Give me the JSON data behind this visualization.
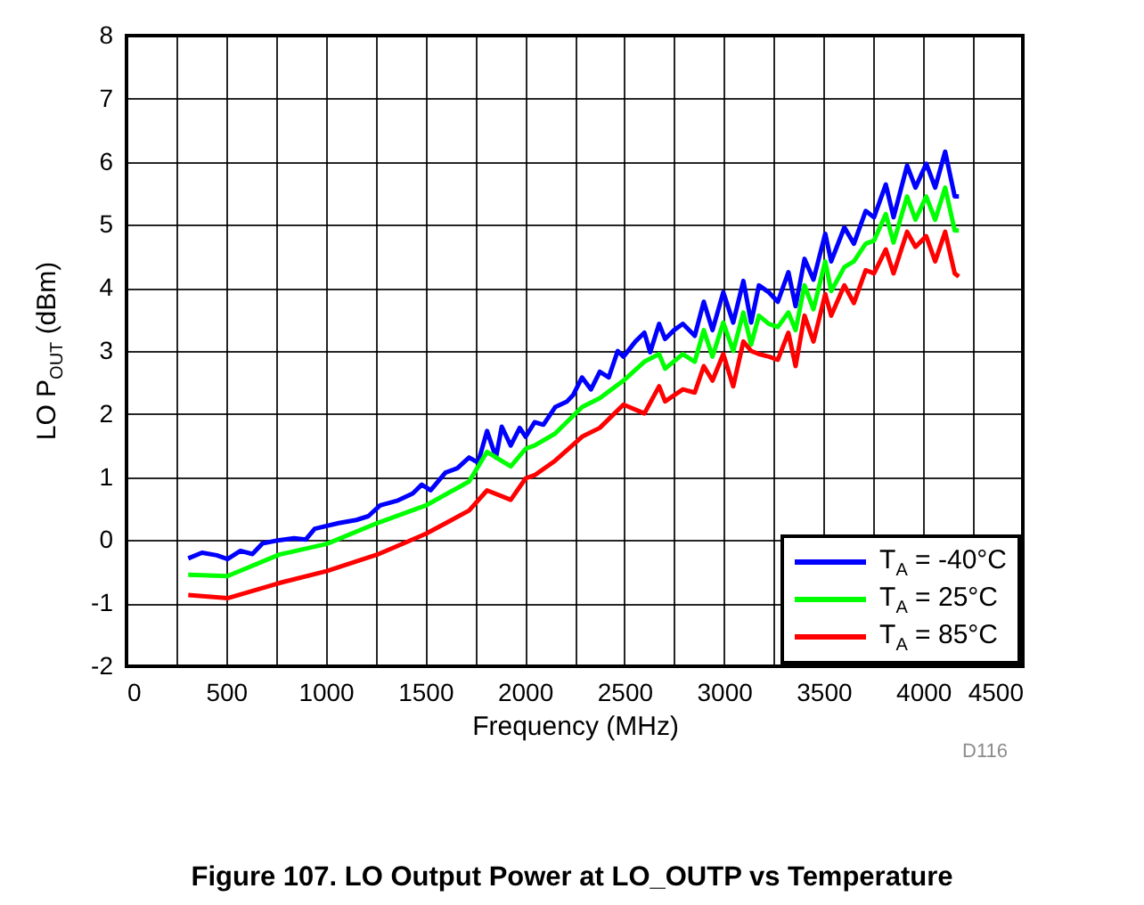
{
  "chart_data": {
    "type": "line",
    "title": "Figure 107. LO Output Power at LO_OUTP vs Temperature",
    "xlabel": "Frequency (MHz)",
    "ylabel": "LO P$_{OUT}$  (dBm)",
    "annotations": [
      "D116"
    ],
    "xlim": [
      0,
      4500
    ],
    "xticks": [
      0,
      {
        "value": 250,
        "label": null
      },
      500,
      {
        "value": 750,
        "label": null
      },
      1000,
      {
        "value": 1250,
        "label": null
      },
      1500,
      {
        "value": 1750,
        "label": null
      },
      2000,
      {
        "value": 2250,
        "label": null
      },
      2500,
      {
        "value": 2750,
        "label": null
      },
      3000,
      {
        "value": 3250,
        "label": null
      },
      3500,
      {
        "value": 3750,
        "label": null
      },
      4000,
      {
        "value": 4250,
        "label": null
      },
      4500
    ],
    "ylim": [
      -2,
      8
    ],
    "yticks": [
      -2,
      -1,
      0,
      1,
      2,
      3,
      4,
      5,
      6,
      7,
      8
    ],
    "grid": true,
    "legend": "bottom right",
    "series": [
      {
        "name": "T$_{A}$ = -40°C",
        "color": "#0000ff",
        "x": [
          310,
          379,
          453,
          507,
          572,
          632,
          683,
          767,
          841,
          900,
          945,
          1065,
          1154,
          1214,
          1273,
          1363,
          1437,
          1482,
          1527,
          1601,
          1661,
          1720,
          1765,
          1810,
          1855,
          1884,
          1929,
          1974,
          2004,
          2049,
          2093,
          2152,
          2212,
          2242,
          2287,
          2332,
          2376,
          2421,
          2466,
          2495,
          2555,
          2600,
          2629,
          2674,
          2704,
          2749,
          2793,
          2853,
          2898,
          2942,
          2996,
          3046,
          3097,
          3136,
          3175,
          3225,
          3270,
          3323,
          3359,
          3404,
          3449,
          3508,
          3538,
          3604,
          3652,
          3711,
          3753,
          3812,
          3851,
          3919,
          3961,
          4015,
          4060,
          4110,
          4158,
          4179
        ],
        "values": [
          -0.29,
          -0.2,
          -0.24,
          -0.3,
          -0.17,
          -0.22,
          -0.05,
          0,
          0.03,
          0.01,
          0.18,
          0.27,
          0.32,
          0.38,
          0.55,
          0.63,
          0.74,
          0.88,
          0.79,
          1.07,
          1.14,
          1.31,
          1.23,
          1.73,
          1.31,
          1.8,
          1.5,
          1.78,
          1.64,
          1.87,
          1.83,
          2.11,
          2.2,
          2.3,
          2.58,
          2.39,
          2.67,
          2.58,
          3.0,
          2.91,
          3.15,
          3.29,
          2.98,
          3.43,
          3.19,
          3.33,
          3.43,
          3.24,
          3.78,
          3.33,
          3.93,
          3.45,
          4.11,
          3.45,
          4.04,
          3.93,
          3.78,
          4.25,
          3.71,
          4.46,
          4.13,
          4.86,
          4.42,
          4.96,
          4.7,
          5.22,
          5.12,
          5.64,
          5.12,
          5.94,
          5.59,
          5.97,
          5.59,
          6.16,
          5.45,
          5.45
        ]
      },
      {
        "name": "T$_{A}$ = 25°C",
        "color": "#00ff00",
        "x": [
          310,
          507,
          767,
          1005,
          1258,
          1503,
          1720,
          1810,
          1929,
          2004,
          2049,
          2152,
          2287,
          2376,
          2495,
          2600,
          2674,
          2704,
          2793,
          2853,
          2898,
          2942,
          2996,
          3046,
          3097,
          3136,
          3175,
          3225,
          3270,
          3323,
          3359,
          3404,
          3449,
          3508,
          3538,
          3604,
          3652,
          3711,
          3753,
          3812,
          3851,
          3919,
          3961,
          4015,
          4060,
          4110,
          4158,
          4179
        ],
        "values": [
          -0.55,
          -0.57,
          -0.23,
          -0.06,
          0.27,
          0.55,
          0.93,
          1.4,
          1.17,
          1.45,
          1.5,
          1.69,
          2.11,
          2.25,
          2.53,
          2.83,
          2.95,
          2.72,
          2.95,
          2.83,
          3.33,
          2.91,
          3.45,
          3.0,
          3.61,
          3.1,
          3.56,
          3.43,
          3.38,
          3.61,
          3.33,
          4.04,
          3.66,
          4.42,
          3.95,
          4.33,
          4.42,
          4.7,
          4.75,
          5.17,
          4.72,
          5.45,
          5.08,
          5.45,
          5.08,
          5.59,
          4.91,
          4.91
        ]
      },
      {
        "name": "T$_{A}$ = 85°C",
        "color": "#ff0000",
        "x": [
          310,
          507,
          767,
          1005,
          1258,
          1503,
          1720,
          1810,
          1929,
          2004,
          2049,
          2152,
          2287,
          2376,
          2495,
          2600,
          2674,
          2704,
          2793,
          2853,
          2898,
          2942,
          2996,
          3046,
          3097,
          3136,
          3175,
          3225,
          3270,
          3323,
          3359,
          3404,
          3449,
          3508,
          3538,
          3604,
          3652,
          3711,
          3753,
          3812,
          3851,
          3919,
          3961,
          4015,
          4060,
          4110,
          4158,
          4179
        ],
        "values": [
          -0.87,
          -0.92,
          -0.68,
          -0.49,
          -0.23,
          0.1,
          0.47,
          0.79,
          0.64,
          0.98,
          1.03,
          1.26,
          1.64,
          1.78,
          2.15,
          2.01,
          2.44,
          2.2,
          2.39,
          2.34,
          2.76,
          2.53,
          2.95,
          2.44,
          3.15,
          3.0,
          2.95,
          2.91,
          2.86,
          3.29,
          2.76,
          3.56,
          3.15,
          3.9,
          3.56,
          4.04,
          3.76,
          4.28,
          4.23,
          4.61,
          4.23,
          4.89,
          4.65,
          4.82,
          4.42,
          4.89,
          4.23,
          4.18
        ]
      }
    ]
  }
}
